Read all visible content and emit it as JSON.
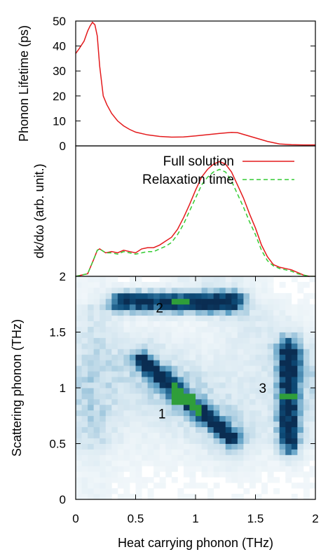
{
  "chart_data": [
    {
      "type": "line",
      "title": "",
      "xlabel": "",
      "ylabel": "Phonon Lifetime (ps)",
      "xlim": [
        0,
        2
      ],
      "ylim": [
        0,
        50
      ],
      "yticks": [
        "0",
        "10",
        "20",
        "30",
        "40",
        "50"
      ],
      "grid": false,
      "series": [
        {
          "color": "#e41a1c",
          "style": "solid",
          "x": [
            0.0,
            0.03,
            0.07,
            0.1,
            0.12,
            0.14,
            0.16,
            0.18,
            0.2,
            0.23,
            0.26,
            0.3,
            0.35,
            0.4,
            0.45,
            0.5,
            0.6,
            0.7,
            0.8,
            0.9,
            1.0,
            1.1,
            1.2,
            1.3,
            1.35,
            1.4,
            1.5,
            1.6,
            1.7,
            1.8,
            1.9,
            2.0
          ],
          "y": [
            37,
            39,
            42,
            46,
            48,
            49.5,
            48.5,
            44,
            32,
            20,
            16.5,
            13,
            10,
            8,
            6.6,
            5.5,
            4.4,
            3.8,
            3.5,
            3.6,
            4.0,
            4.5,
            5.0,
            5.4,
            5.3,
            4.6,
            3.2,
            1.8,
            0.8,
            0.5,
            0.4,
            0.4
          ]
        }
      ]
    },
    {
      "type": "line",
      "title": "",
      "xlabel": "",
      "ylabel": "dk/dω (arb. unit.)",
      "xlim": [
        0,
        2
      ],
      "ylim": [
        0,
        1
      ],
      "yticks": [],
      "legend_position": "top-right",
      "series": [
        {
          "name": "Full solution",
          "color": "#e41a1c",
          "style": "solid",
          "x": [
            0.0,
            0.1,
            0.15,
            0.18,
            0.2,
            0.25,
            0.3,
            0.35,
            0.4,
            0.45,
            0.5,
            0.55,
            0.6,
            0.65,
            0.7,
            0.75,
            0.8,
            0.85,
            0.9,
            0.95,
            1.0,
            1.05,
            1.1,
            1.15,
            1.2,
            1.25,
            1.3,
            1.35,
            1.4,
            1.45,
            1.5,
            1.55,
            1.6,
            1.65,
            1.7,
            1.75,
            1.8,
            1.85,
            1.9,
            1.95,
            2.0
          ],
          "y": [
            0.0,
            0.02,
            0.13,
            0.2,
            0.21,
            0.18,
            0.19,
            0.18,
            0.2,
            0.19,
            0.18,
            0.21,
            0.22,
            0.22,
            0.24,
            0.27,
            0.3,
            0.36,
            0.45,
            0.55,
            0.66,
            0.76,
            0.82,
            0.86,
            0.88,
            0.86,
            0.8,
            0.7,
            0.6,
            0.48,
            0.37,
            0.24,
            0.15,
            0.09,
            0.07,
            0.06,
            0.05,
            0.03,
            0.01,
            0.0,
            0.0
          ]
        },
        {
          "name": "Relaxation time",
          "color": "#33cc33",
          "style": "dashed",
          "x": [
            0.0,
            0.1,
            0.15,
            0.18,
            0.2,
            0.25,
            0.3,
            0.35,
            0.4,
            0.45,
            0.5,
            0.55,
            0.6,
            0.65,
            0.7,
            0.75,
            0.8,
            0.85,
            0.9,
            0.95,
            1.0,
            1.05,
            1.1,
            1.15,
            1.2,
            1.25,
            1.3,
            1.35,
            1.4,
            1.45,
            1.5,
            1.55,
            1.6,
            1.65,
            1.7,
            1.75,
            1.8,
            1.85,
            1.9,
            1.95,
            2.0
          ],
          "y": [
            0.0,
            0.02,
            0.13,
            0.2,
            0.21,
            0.18,
            0.18,
            0.17,
            0.19,
            0.18,
            0.17,
            0.18,
            0.19,
            0.19,
            0.21,
            0.23,
            0.26,
            0.32,
            0.4,
            0.5,
            0.6,
            0.7,
            0.76,
            0.8,
            0.82,
            0.8,
            0.73,
            0.63,
            0.53,
            0.42,
            0.32,
            0.2,
            0.12,
            0.08,
            0.06,
            0.05,
            0.04,
            0.02,
            0.01,
            0.0,
            0.0
          ]
        }
      ]
    },
    {
      "type": "heatmap",
      "title": "",
      "xlabel": "Heat carrying phonon (THz)",
      "ylabel": "Scattering phonon (THz)",
      "xlim": [
        0,
        2
      ],
      "ylim": [
        0,
        2
      ],
      "xticks": [
        "0",
        "0.5",
        "1",
        "1.5",
        "2"
      ],
      "yticks": [
        "0",
        "0.5",
        "1",
        "1.5",
        "2"
      ],
      "colormap": [
        "#ffffff",
        "#cfe3ee",
        "#5d9fc4",
        "#0e4f7c",
        "#0a2d52",
        "#2f9e3a"
      ],
      "features": [
        {
          "label": "1",
          "type": "diagonal band",
          "from": [
            0.55,
            1.25
          ],
          "to": [
            1.3,
            0.55
          ],
          "peak": [
            0.9,
            0.9
          ]
        },
        {
          "label": "2",
          "type": "horizontal band",
          "x_range": [
            0.4,
            1.3
          ],
          "y": 1.77,
          "peak": [
            0.87,
            1.77
          ]
        },
        {
          "label": "3",
          "type": "vertical band",
          "x": 1.78,
          "y_range": [
            0.55,
            1.3
          ],
          "peak": [
            1.78,
            0.92
          ]
        }
      ],
      "annotations": [
        {
          "text": "1",
          "x": 0.72,
          "y": 0.77
        },
        {
          "text": "2",
          "x": 0.7,
          "y": 1.72
        },
        {
          "text": "3",
          "x": 1.56,
          "y": 1.0
        }
      ]
    }
  ]
}
